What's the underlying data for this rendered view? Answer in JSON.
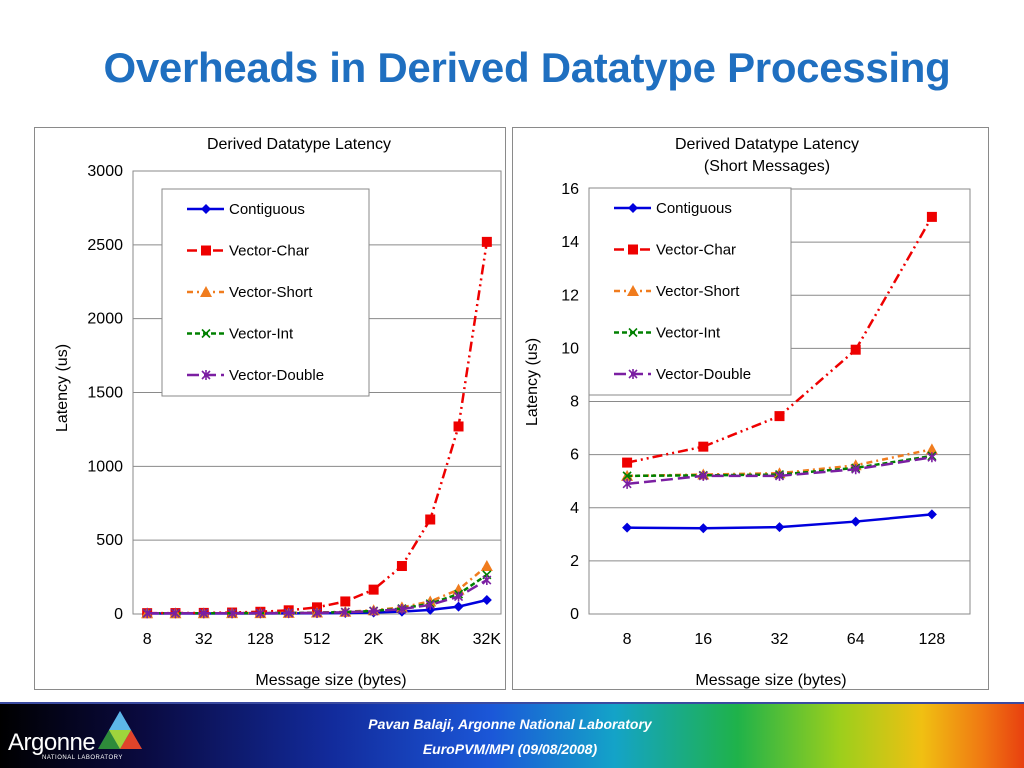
{
  "slide": {
    "title": "Overheads in Derived Datatype Processing"
  },
  "footer": {
    "logo_text": "Argonne",
    "logo_subtext": "NATIONAL LABORATORY",
    "line1": "Pavan Balaji, Argonne National Laboratory",
    "line2": "EuroPVM/MPI (09/08/2008)"
  },
  "chart_data": [
    {
      "type": "line",
      "title": "Derived Datatype Latency",
      "xlabel": "Message size (bytes)",
      "ylabel": "Latency (us)",
      "categories": [
        "8",
        "16",
        "32",
        "64",
        "128",
        "256",
        "512",
        "1K",
        "2K",
        "4K",
        "8K",
        "16K",
        "32K"
      ],
      "x_tick_labels": [
        "8",
        "32",
        "128",
        "512",
        "2K",
        "8K",
        "32K"
      ],
      "ylim": [
        0,
        3000
      ],
      "y_ticks": [
        0,
        500,
        1000,
        1500,
        2000,
        2500,
        3000
      ],
      "grid": true,
      "legend_position": "top-left",
      "series": [
        {
          "name": "Contiguous",
          "color": "#0000dd",
          "marker": "diamond",
          "dash": "solid",
          "values": [
            3.3,
            3.3,
            3.3,
            3.5,
            3.8,
            4.5,
            5.5,
            7,
            10,
            16,
            28,
            50,
            95
          ]
        },
        {
          "name": "Vector-Char",
          "color": "#ee0000",
          "marker": "square",
          "dash": "dashdotdot",
          "values": [
            5.7,
            6.3,
            7.5,
            10,
            15,
            25,
            45,
            85,
            165,
            325,
            640,
            1270,
            2520
          ]
        },
        {
          "name": "Vector-Short",
          "color": "#f07c1e",
          "marker": "triangle",
          "dash": "dashdot",
          "values": [
            5.2,
            5.2,
            5.3,
            5.6,
            6.2,
            7.5,
            10,
            15,
            25,
            45,
            85,
            165,
            325
          ]
        },
        {
          "name": "Vector-Int",
          "color": "#008000",
          "marker": "x",
          "dash": "dashed",
          "values": [
            5.2,
            5.2,
            5.2,
            5.5,
            5.9,
            6.8,
            9,
            13,
            21,
            37,
            70,
            135,
            265
          ]
        },
        {
          "name": "Vector-Double",
          "color": "#7b1fa2",
          "marker": "star",
          "dash": "longdash",
          "values": [
            4.9,
            5.2,
            5.2,
            5.5,
            5.9,
            6.5,
            8,
            12,
            19,
            33,
            62,
            118,
            230
          ]
        }
      ]
    },
    {
      "type": "line",
      "title": "Derived Datatype Latency",
      "subtitle": "(Short Messages)",
      "xlabel": "Message size (bytes)",
      "ylabel": "Latency (us)",
      "categories": [
        "8",
        "16",
        "32",
        "64",
        "128"
      ],
      "x_tick_labels": [
        "8",
        "16",
        "32",
        "64",
        "128"
      ],
      "ylim": [
        0,
        16
      ],
      "y_ticks": [
        0,
        2,
        4,
        6,
        8,
        10,
        12,
        14,
        16
      ],
      "grid": true,
      "legend_position": "top-left",
      "series": [
        {
          "name": "Contiguous",
          "color": "#0000dd",
          "marker": "diamond",
          "dash": "solid",
          "values": [
            3.25,
            3.23,
            3.27,
            3.48,
            3.75
          ]
        },
        {
          "name": "Vector-Char",
          "color": "#ee0000",
          "marker": "square",
          "dash": "dashdotdot",
          "values": [
            5.7,
            6.3,
            7.45,
            9.95,
            14.95
          ]
        },
        {
          "name": "Vector-Short",
          "color": "#f07c1e",
          "marker": "triangle",
          "dash": "dashdot",
          "values": [
            5.2,
            5.25,
            5.3,
            5.6,
            6.2
          ]
        },
        {
          "name": "Vector-Int",
          "color": "#008000",
          "marker": "x",
          "dash": "dashed",
          "values": [
            5.2,
            5.22,
            5.25,
            5.5,
            5.95
          ]
        },
        {
          "name": "Vector-Double",
          "color": "#7b1fa2",
          "marker": "star",
          "dash": "longdash",
          "values": [
            4.9,
            5.2,
            5.2,
            5.45,
            5.9
          ]
        }
      ]
    }
  ]
}
